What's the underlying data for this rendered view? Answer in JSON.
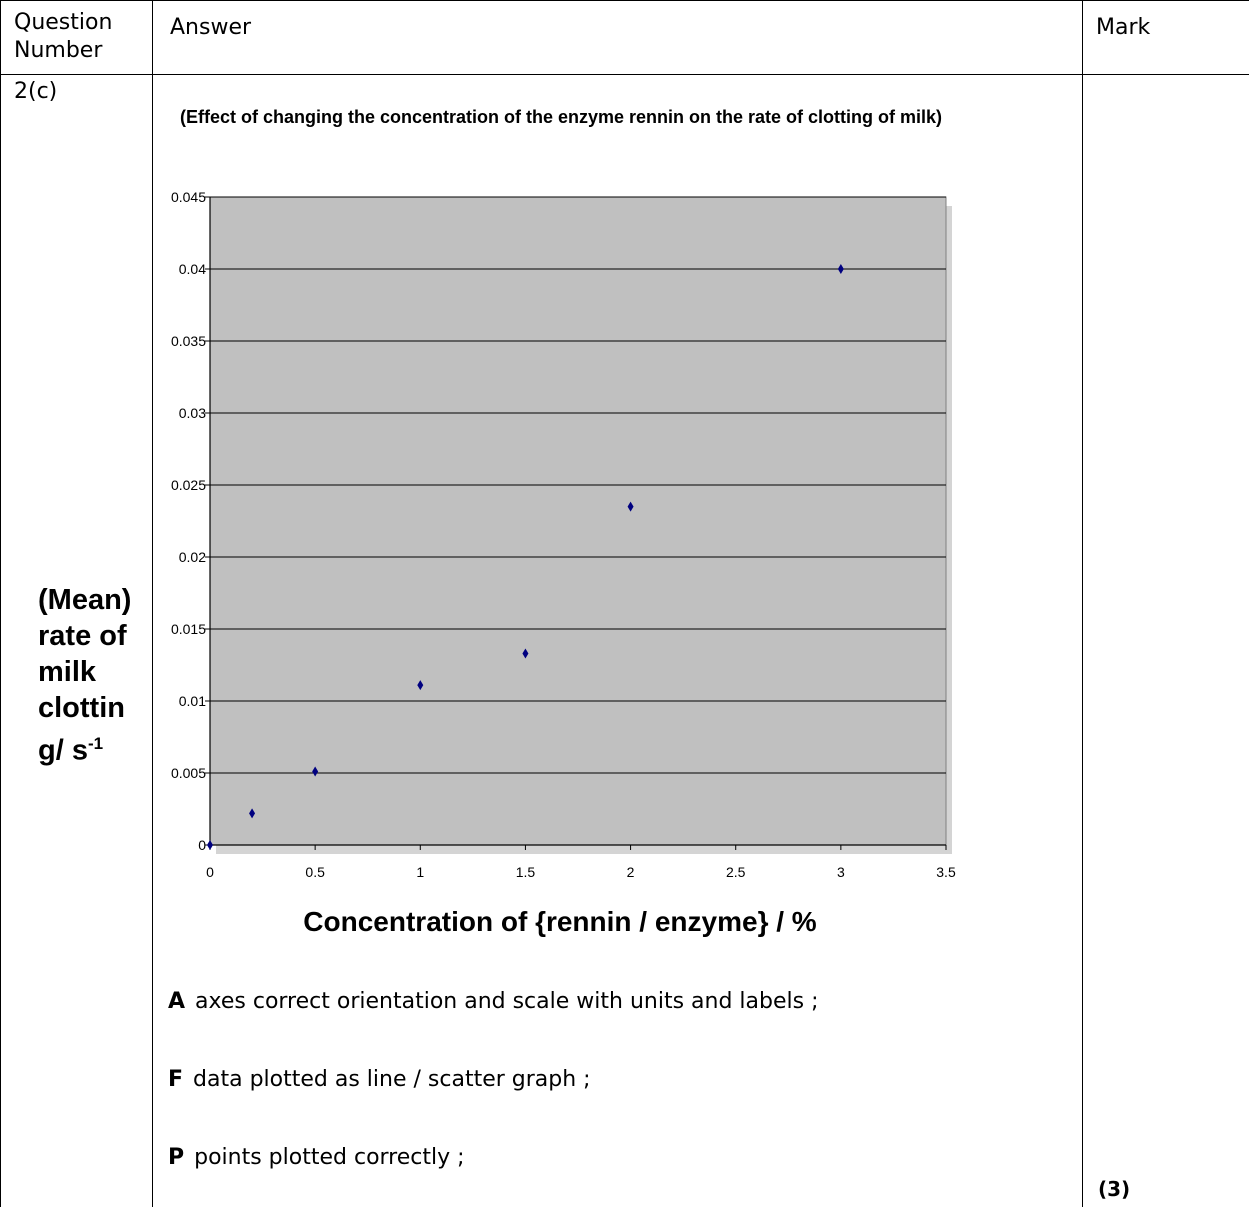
{
  "table": {
    "headers": {
      "question_number": "Question Number",
      "answer": "Answer",
      "mark": "Mark"
    },
    "row": {
      "question_number": "2(c)",
      "mark": "(3)"
    }
  },
  "chart_data": {
    "type": "scatter",
    "title": "(Effect of changing the concentration of the enzyme rennin on the rate of clotting of milk)",
    "xlabel": "Concentration of {rennin / enzyme} / %",
    "ylabel_main": "(Mean) rate of milk clottin g/ s",
    "ylabel_superscript": "-1",
    "xlim": [
      0,
      3.5
    ],
    "ylim": [
      0,
      0.045
    ],
    "x_ticks": [
      "0",
      "0.5",
      "1",
      "1.5",
      "2",
      "2.5",
      "3",
      "3.5"
    ],
    "y_ticks": [
      "0",
      "0.005",
      "0.01",
      "0.015",
      "0.02",
      "0.025",
      "0.03",
      "0.035",
      "0.04",
      "0.045"
    ],
    "grid": true,
    "marker_color": "#000080",
    "plot_background": "#c0c0c0",
    "points": [
      {
        "x": 0,
        "y": 0
      },
      {
        "x": 0.2,
        "y": 0.0022
      },
      {
        "x": 0.5,
        "y": 0.0051
      },
      {
        "x": 1,
        "y": 0.0111
      },
      {
        "x": 1.5,
        "y": 0.0133
      },
      {
        "x": 2,
        "y": 0.0235
      },
      {
        "x": 3,
        "y": 0.04
      }
    ]
  },
  "criteria": [
    {
      "key": "A",
      "text": "axes correct orientation and scale with units and labels ;"
    },
    {
      "key": "F",
      "text": "data plotted as line / scatter graph ;"
    },
    {
      "key": "P",
      "text": "points plotted correctly ;"
    }
  ]
}
